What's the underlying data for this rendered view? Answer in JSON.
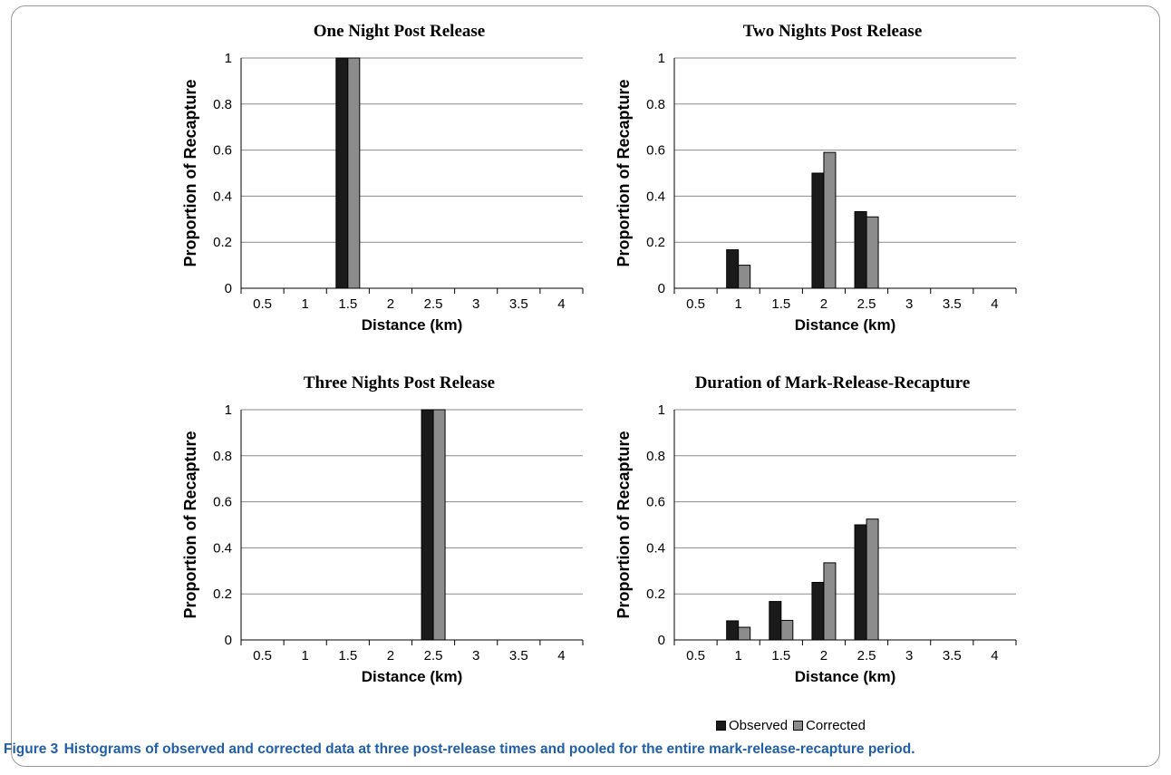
{
  "figure": {
    "caption_label": "Figure 3",
    "caption_text": "Histograms of observed and corrected data at three post-release times and pooled for the entire mark-release-recapture period."
  },
  "legend": {
    "observed_label": "Observed",
    "corrected_label": "Corrected",
    "observed_color": "#1a1a1a",
    "corrected_color": "#8c8c8c"
  },
  "chart_data": [
    {
      "type": "bar",
      "title": "One Night Post Release",
      "xlabel": "Distance (km)",
      "ylabel": "Proportion of Recapture",
      "categories": [
        "0.5",
        "1",
        "1.5",
        "2",
        "2.5",
        "3",
        "3.5",
        "4"
      ],
      "ylim": [
        0,
        1
      ],
      "yticks": [
        "0",
        "0.2",
        "0.4",
        "0.6",
        "0.8",
        "1"
      ],
      "grid": true,
      "series": [
        {
          "name": "Observed",
          "values": [
            0,
            0,
            1,
            0,
            0,
            0,
            0,
            0
          ]
        },
        {
          "name": "Corrected",
          "values": [
            0,
            0,
            1,
            0,
            0,
            0,
            0,
            0
          ]
        }
      ]
    },
    {
      "type": "bar",
      "title": "Two Nights Post Release",
      "xlabel": "Distance (km)",
      "ylabel": "Proportion of Recapture",
      "categories": [
        "0.5",
        "1",
        "1.5",
        "2",
        "2.5",
        "3",
        "3.5",
        "4"
      ],
      "ylim": [
        0,
        1
      ],
      "yticks": [
        "0",
        "0.2",
        "0.4",
        "0.6",
        "0.8",
        "1"
      ],
      "grid": true,
      "series": [
        {
          "name": "Observed",
          "values": [
            0,
            0.167,
            0,
            0.5,
            0.333,
            0,
            0,
            0
          ]
        },
        {
          "name": "Corrected",
          "values": [
            0,
            0.1,
            0,
            0.59,
            0.31,
            0,
            0,
            0
          ]
        }
      ]
    },
    {
      "type": "bar",
      "title": "Three Nights Post Release",
      "xlabel": "Distance (km)",
      "ylabel": "Proportion of Recapture",
      "categories": [
        "0.5",
        "1",
        "1.5",
        "2",
        "2.5",
        "3",
        "3.5",
        "4"
      ],
      "ylim": [
        0,
        1
      ],
      "yticks": [
        "0",
        "0.2",
        "0.4",
        "0.6",
        "0.8",
        "1"
      ],
      "grid": true,
      "series": [
        {
          "name": "Observed",
          "values": [
            0,
            0,
            0,
            0,
            1,
            0,
            0,
            0
          ]
        },
        {
          "name": "Corrected",
          "values": [
            0,
            0,
            0,
            0,
            1,
            0,
            0,
            0
          ]
        }
      ]
    },
    {
      "type": "bar",
      "title": "Duration of Mark-Release-Recapture",
      "xlabel": "Distance (km)",
      "ylabel": "Proportion of Recapture",
      "categories": [
        "0.5",
        "1",
        "1.5",
        "2",
        "2.5",
        "3",
        "3.5",
        "4"
      ],
      "ylim": [
        0,
        1
      ],
      "yticks": [
        "0",
        "0.2",
        "0.4",
        "0.6",
        "0.8",
        "1"
      ],
      "grid": true,
      "series": [
        {
          "name": "Observed",
          "values": [
            0,
            0.083,
            0.167,
            0.25,
            0.5,
            0,
            0,
            0
          ]
        },
        {
          "name": "Corrected",
          "values": [
            0,
            0.055,
            0.085,
            0.335,
            0.525,
            0,
            0,
            0
          ]
        }
      ]
    }
  ]
}
